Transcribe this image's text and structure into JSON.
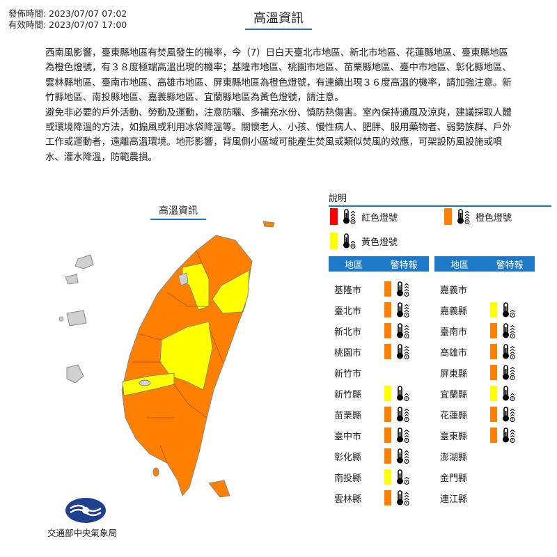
{
  "header": {
    "issued": "發佈時間: 2023/07/07 07:02",
    "valid": "有效時間: 2023/07/07 17:00",
    "title": "高溫資訊"
  },
  "body": {
    "p1": "西南風影響，臺東縣地區有焚風發生的機率，今（7）日白天臺北市地區、新北市地區、花蓮縣地區、臺東縣地區為橙色燈號，有３８度極端高溫出現的機率；基隆市地區、桃園市地區、苗栗縣地區、臺中市地區、彰化縣地區、雲林縣地區、臺南市地區、高雄市地區、屏東縣地區為橙色燈號，有連續出現３６度高溫的機率，請加強注意。新竹縣地區、南投縣地區、嘉義縣地區、宜蘭縣地區為黃色燈號，請注意。",
    "p2": "避免非必要的戶外活動、勞動及運動，注意防曬、多補充水份、慎防熱傷害。室內保持通風及涼爽，建議採取人體或環境降溫的方法，如搧風或利用冰袋降溫等。關懷老人、小孩、慢性病人、肥胖、服用藥物者、弱勢族群、戶外工作或運動者，遠離高溫環境。地形影響，背風側小區域可能產生焚風或類似焚風的效應，可架設防風設施或噴水、灌水降溫，防範農損。"
  },
  "map": {
    "title": "高溫資訊"
  },
  "legend": {
    "title": "說明",
    "red": "紅色燈號",
    "orange": "橙色燈號",
    "yellow": "黃色燈號"
  },
  "colors": {
    "red": "#ff0000",
    "orange": "#ff8000",
    "yellow": "#ffff00",
    "header_blue": "#1e78c8",
    "gray": "#d0d0d0"
  },
  "table": {
    "col_region": "地區",
    "col_warning": "警特報",
    "left": [
      {
        "name": "基隆市",
        "level": "orange"
      },
      {
        "name": "臺北市",
        "level": "orange"
      },
      {
        "name": "新北市",
        "level": "orange"
      },
      {
        "name": "桃園市",
        "level": "orange"
      },
      {
        "name": "新竹市",
        "level": ""
      },
      {
        "name": "新竹縣",
        "level": "yellow"
      },
      {
        "name": "苗栗縣",
        "level": "orange"
      },
      {
        "name": "臺中市",
        "level": "orange"
      },
      {
        "name": "彰化縣",
        "level": "orange"
      },
      {
        "name": "南投縣",
        "level": "yellow"
      },
      {
        "name": "雲林縣",
        "level": "orange"
      }
    ],
    "right": [
      {
        "name": "嘉義市",
        "level": ""
      },
      {
        "name": "嘉義縣",
        "level": "yellow"
      },
      {
        "name": "臺南市",
        "level": "orange"
      },
      {
        "name": "高雄市",
        "level": "orange"
      },
      {
        "name": "屏東縣",
        "level": "orange"
      },
      {
        "name": "宜蘭縣",
        "level": "yellow"
      },
      {
        "name": "花蓮縣",
        "level": "orange"
      },
      {
        "name": "臺東縣",
        "level": "orange"
      },
      {
        "name": "澎湖縣",
        "level": ""
      },
      {
        "name": "金門縣",
        "level": ""
      },
      {
        "name": "連江縣",
        "level": ""
      }
    ]
  },
  "footer": {
    "agency": "交通部中央氣象局"
  }
}
